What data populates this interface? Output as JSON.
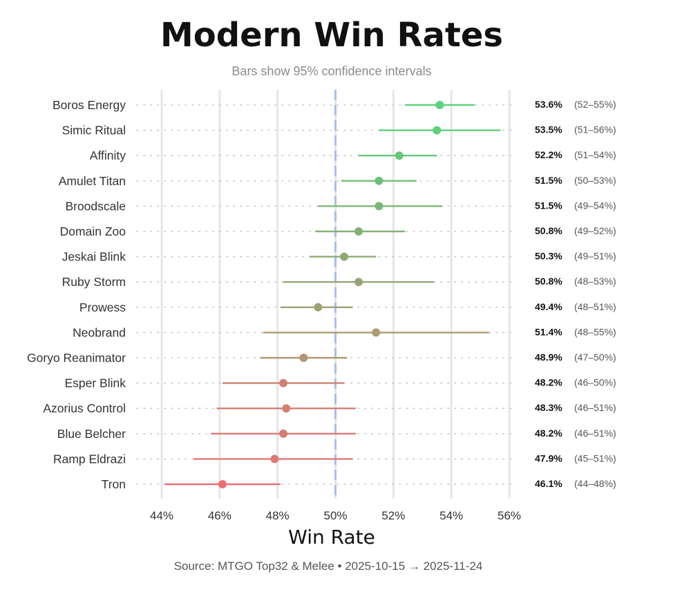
{
  "chart_data": {
    "type": "dot-interval",
    "title": "Modern Win Rates",
    "subtitle": "Bars show 95% confidence intervals",
    "xlabel": "Win Rate",
    "source": "Source: MTGO Top32 & Melee  •  2025-10-15 → 2025-11-24",
    "x_ticks": [
      "44%",
      "46%",
      "48%",
      "50%",
      "52%",
      "54%",
      "56%"
    ],
    "x_range": [
      44,
      56
    ],
    "reference_line": 50,
    "colors": {
      "reference": "#a4c0ee",
      "gridline": "#e6e6e6",
      "dotted": "#c4c4c4"
    },
    "series": [
      {
        "deck": "Boros Energy",
        "win": 53.6,
        "lo": 52.4,
        "hi": 54.8,
        "label": "53.6%",
        "ci": "(52–55%)",
        "color": "#5bd27f"
      },
      {
        "deck": "Simic Ritual",
        "win": 53.5,
        "lo": 51.5,
        "hi": 55.7,
        "label": "53.5%",
        "ci": "(51–56%)",
        "color": "#5fcf7c"
      },
      {
        "deck": "Affinity",
        "win": 52.2,
        "lo": 50.8,
        "hi": 53.5,
        "label": "52.2%",
        "ci": "(51–54%)",
        "color": "#66c67a"
      },
      {
        "deck": "Amulet Titan",
        "win": 51.5,
        "lo": 50.2,
        "hi": 52.8,
        "label": "51.5%",
        "ci": "(50–53%)",
        "color": "#70bf78"
      },
      {
        "deck": "Broodscale",
        "win": 51.5,
        "lo": 49.4,
        "hi": 53.7,
        "label": "51.5%",
        "ci": "(49–54%)",
        "color": "#7ab777"
      },
      {
        "deck": "Domain Zoo",
        "win": 50.8,
        "lo": 49.3,
        "hi": 52.4,
        "label": "50.8%",
        "ci": "(49–52%)",
        "color": "#84b276"
      },
      {
        "deck": "Jeskai Blink",
        "win": 50.3,
        "lo": 49.1,
        "hi": 51.4,
        "label": "50.3%",
        "ci": "(49–51%)",
        "color": "#8eaa75"
      },
      {
        "deck": "Ruby Storm",
        "win": 50.8,
        "lo": 48.2,
        "hi": 53.4,
        "label": "50.8%",
        "ci": "(48–53%)",
        "color": "#95a675"
      },
      {
        "deck": "Prowess",
        "win": 49.4,
        "lo": 48.1,
        "hi": 50.6,
        "label": "49.4%",
        "ci": "(48–51%)",
        "color": "#9fa174"
      },
      {
        "deck": "Neobrand",
        "win": 51.4,
        "lo": 47.5,
        "hi": 55.3,
        "label": "51.4%",
        "ci": "(48–55%)",
        "color": "#aa9c74"
      },
      {
        "deck": "Goryo Reanimator",
        "win": 48.9,
        "lo": 47.4,
        "hi": 50.4,
        "label": "48.9%",
        "ci": "(47–50%)",
        "color": "#b39574"
      },
      {
        "deck": "Esper Blink",
        "win": 48.2,
        "lo": 46.1,
        "hi": 50.3,
        "label": "48.2%",
        "ci": "(46–50%)",
        "color": "#cd8373"
      },
      {
        "deck": "Azorius Control",
        "win": 48.3,
        "lo": 45.9,
        "hi": 50.7,
        "label": "48.3%",
        "ci": "(46–51%)",
        "color": "#d47f72"
      },
      {
        "deck": "Blue Belcher",
        "win": 48.2,
        "lo": 45.7,
        "hi": 50.7,
        "label": "48.2%",
        "ci": "(46–51%)",
        "color": "#d77c72"
      },
      {
        "deck": "Ramp Eldrazi",
        "win": 47.9,
        "lo": 45.1,
        "hi": 50.6,
        "label": "47.9%",
        "ci": "(45–51%)",
        "color": "#e07872"
      },
      {
        "deck": "Tron",
        "win": 46.1,
        "lo": 44.1,
        "hi": 48.1,
        "label": "46.1%",
        "ci": "(44–48%)",
        "color": "#ec6e72"
      }
    ]
  }
}
